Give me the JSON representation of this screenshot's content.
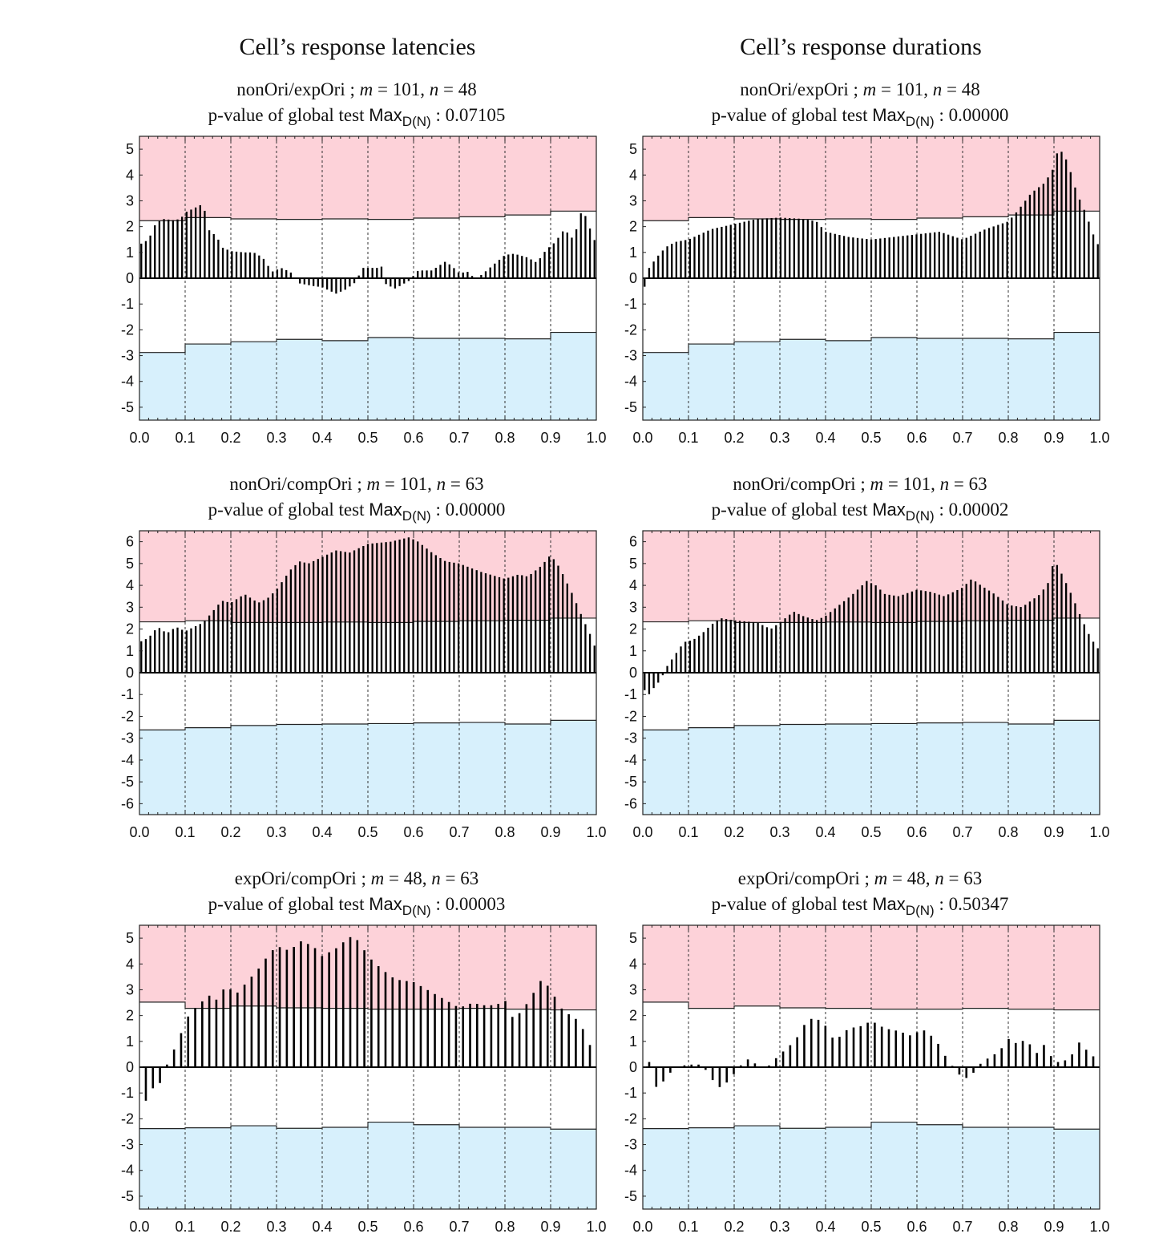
{
  "column_titles": [
    "Cell’s response latencies",
    "Cell’s response durations"
  ],
  "labels": {
    "test_prefix": "p-value of global test",
    "stat_main": "Max",
    "stat_sub": "D(N)",
    "colon": ":"
  },
  "colors": {
    "upper_region": "#fdd2d9",
    "lower_region": "#d7f0fc",
    "bar": "#000000",
    "border": "#222222",
    "grid": "#333333"
  },
  "chart_data": [
    {
      "type": "bar",
      "column": "Cell’s response latencies",
      "title": "nonOri/expOri ; m = 101, n = 48",
      "comparison": "nonOri/expOri",
      "m": "101",
      "n": "48",
      "p_value": "0.07105",
      "xlim": [
        0,
        1
      ],
      "ylim": [
        -5.5,
        5.5
      ],
      "xticks": [
        "0.0",
        "0.1",
        "0.2",
        "0.3",
        "0.4",
        "0.5",
        "0.6",
        "0.7",
        "0.8",
        "0.9",
        "1.0"
      ],
      "yticks": [
        5,
        4,
        3,
        2,
        1,
        0,
        -1,
        -2,
        -3,
        -4,
        -5
      ],
      "bar_count": 101,
      "keypoints": [
        [
          0,
          1.3
        ],
        [
          0.02,
          1.5
        ],
        [
          0.035,
          2.1
        ],
        [
          0.05,
          2.3
        ],
        [
          0.075,
          2.25
        ],
        [
          0.09,
          2.3
        ],
        [
          0.1,
          2.55
        ],
        [
          0.13,
          2.8
        ],
        [
          0.14,
          2.9
        ],
        [
          0.15,
          1.9
        ],
        [
          0.17,
          1.6
        ],
        [
          0.18,
          1.2
        ],
        [
          0.2,
          1.05
        ],
        [
          0.23,
          1.0
        ],
        [
          0.25,
          1.0
        ],
        [
          0.27,
          0.8
        ],
        [
          0.29,
          0.25
        ],
        [
          0.31,
          0.4
        ],
        [
          0.33,
          0.25
        ],
        [
          0.35,
          -0.2
        ],
        [
          0.38,
          -0.3
        ],
        [
          0.4,
          -0.35
        ],
        [
          0.43,
          -0.6
        ],
        [
          0.45,
          -0.45
        ],
        [
          0.47,
          -0.2
        ],
        [
          0.49,
          0.4
        ],
        [
          0.52,
          0.4
        ],
        [
          0.53,
          0.45
        ],
        [
          0.54,
          -0.25
        ],
        [
          0.56,
          -0.4
        ],
        [
          0.59,
          -0.1
        ],
        [
          0.61,
          0.3
        ],
        [
          0.64,
          0.3
        ],
        [
          0.67,
          0.65
        ],
        [
          0.685,
          0.45
        ],
        [
          0.7,
          0.2
        ],
        [
          0.72,
          0.25
        ],
        [
          0.735,
          -0.05
        ],
        [
          0.75,
          0.15
        ],
        [
          0.78,
          0.6
        ],
        [
          0.8,
          0.9
        ],
        [
          0.82,
          0.95
        ],
        [
          0.85,
          0.8
        ],
        [
          0.87,
          0.6
        ],
        [
          0.89,
          1.1
        ],
        [
          0.91,
          1.4
        ],
        [
          0.93,
          1.9
        ],
        [
          0.95,
          1.5
        ],
        [
          0.97,
          2.75
        ],
        [
          0.98,
          2.2
        ],
        [
          1.0,
          1.3
        ]
      ],
      "upper_threshold": [
        2.23,
        2.35,
        2.3,
        2.28,
        2.3,
        2.28,
        2.33,
        2.38,
        2.45,
        2.6
      ],
      "lower_threshold": [
        -2.88,
        -2.55,
        -2.46,
        -2.37,
        -2.42,
        -2.3,
        -2.33,
        -2.33,
        -2.35,
        -2.1
      ]
    },
    {
      "type": "bar",
      "column": "Cell’s response durations",
      "title": "nonOri/expOri ; m = 101, n = 48",
      "comparison": "nonOri/expOri",
      "m": "101",
      "n": "48",
      "p_value": "0.00000",
      "xlim": [
        0,
        1
      ],
      "ylim": [
        -5.5,
        5.5
      ],
      "xticks": [
        "0.0",
        "0.1",
        "0.2",
        "0.3",
        "0.4",
        "0.5",
        "0.6",
        "0.7",
        "0.8",
        "0.9",
        "1.0"
      ],
      "yticks": [
        5,
        4,
        3,
        2,
        1,
        0,
        -1,
        -2,
        -3,
        -4,
        -5
      ],
      "bar_count": 101,
      "keypoints": [
        [
          0,
          -0.75
        ],
        [
          0.01,
          0.3
        ],
        [
          0.03,
          0.8
        ],
        [
          0.05,
          1.2
        ],
        [
          0.07,
          1.4
        ],
        [
          0.1,
          1.5
        ],
        [
          0.15,
          1.9
        ],
        [
          0.2,
          2.1
        ],
        [
          0.25,
          2.3
        ],
        [
          0.3,
          2.35
        ],
        [
          0.35,
          2.3
        ],
        [
          0.38,
          2.2
        ],
        [
          0.4,
          1.8
        ],
        [
          0.45,
          1.6
        ],
        [
          0.5,
          1.5
        ],
        [
          0.55,
          1.6
        ],
        [
          0.6,
          1.7
        ],
        [
          0.65,
          1.8
        ],
        [
          0.7,
          1.5
        ],
        [
          0.75,
          1.9
        ],
        [
          0.8,
          2.2
        ],
        [
          0.82,
          2.6
        ],
        [
          0.85,
          3.3
        ],
        [
          0.88,
          3.7
        ],
        [
          0.9,
          4.3
        ],
        [
          0.91,
          5.1
        ],
        [
          0.93,
          4.5
        ],
        [
          0.95,
          3.3
        ],
        [
          0.97,
          2.5
        ],
        [
          0.99,
          1.5
        ],
        [
          1.0,
          1.2
        ]
      ],
      "upper_threshold": [
        2.23,
        2.35,
        2.3,
        2.28,
        2.3,
        2.28,
        2.33,
        2.38,
        2.45,
        2.6
      ],
      "lower_threshold": [
        -2.88,
        -2.55,
        -2.46,
        -2.37,
        -2.42,
        -2.3,
        -2.33,
        -2.33,
        -2.35,
        -2.1
      ]
    },
    {
      "type": "bar",
      "column": "Cell’s response latencies",
      "title": "nonOri/compOri ; m = 101, n = 63",
      "comparison": "nonOri/compOri",
      "m": "101",
      "n": "63",
      "p_value": "0.00000",
      "xlim": [
        0,
        1
      ],
      "ylim": [
        -6.5,
        6.5
      ],
      "xticks": [
        "0.0",
        "0.1",
        "0.2",
        "0.3",
        "0.4",
        "0.5",
        "0.6",
        "0.7",
        "0.8",
        "0.9",
        "1.0"
      ],
      "yticks": [
        6,
        5,
        4,
        3,
        2,
        1,
        0,
        -1,
        -2,
        -3,
        -4,
        -5,
        -6
      ],
      "bar_count": 101,
      "keypoints": [
        [
          0,
          1.4
        ],
        [
          0.02,
          1.6
        ],
        [
          0.04,
          2.1
        ],
        [
          0.06,
          1.8
        ],
        [
          0.08,
          2.1
        ],
        [
          0.1,
          1.9
        ],
        [
          0.12,
          2.1
        ],
        [
          0.14,
          2.3
        ],
        [
          0.16,
          2.8
        ],
        [
          0.18,
          3.3
        ],
        [
          0.2,
          3.2
        ],
        [
          0.23,
          3.6
        ],
        [
          0.26,
          3.2
        ],
        [
          0.28,
          3.4
        ],
        [
          0.3,
          3.8
        ],
        [
          0.33,
          4.7
        ],
        [
          0.35,
          5.1
        ],
        [
          0.37,
          5.0
        ],
        [
          0.4,
          5.3
        ],
        [
          0.43,
          5.6
        ],
        [
          0.46,
          5.5
        ],
        [
          0.5,
          5.9
        ],
        [
          0.55,
          6.0
        ],
        [
          0.59,
          6.2
        ],
        [
          0.61,
          6.0
        ],
        [
          0.64,
          5.5
        ],
        [
          0.67,
          5.1
        ],
        [
          0.7,
          5.0
        ],
        [
          0.75,
          4.6
        ],
        [
          0.8,
          4.3
        ],
        [
          0.83,
          4.5
        ],
        [
          0.85,
          4.4
        ],
        [
          0.88,
          4.9
        ],
        [
          0.9,
          5.4
        ],
        [
          0.92,
          4.8
        ],
        [
          0.95,
          3.5
        ],
        [
          0.97,
          2.5
        ],
        [
          0.99,
          1.6
        ],
        [
          1.0,
          1.0
        ]
      ],
      "upper_threshold": [
        2.33,
        2.38,
        2.3,
        2.3,
        2.32,
        2.3,
        2.35,
        2.38,
        2.4,
        2.5
      ],
      "lower_threshold": [
        -2.62,
        -2.52,
        -2.42,
        -2.37,
        -2.35,
        -2.33,
        -2.3,
        -2.28,
        -2.35,
        -2.18
      ]
    },
    {
      "type": "bar",
      "column": "Cell’s response durations",
      "title": "nonOri/compOri ; m = 101, n = 63",
      "comparison": "nonOri/compOri",
      "m": "101",
      "n": "63",
      "p_value": "0.00002",
      "xlim": [
        0,
        1
      ],
      "ylim": [
        -6.5,
        6.5
      ],
      "xticks": [
        "0.0",
        "0.1",
        "0.2",
        "0.3",
        "0.4",
        "0.5",
        "0.6",
        "0.7",
        "0.8",
        "0.9",
        "1.0"
      ],
      "yticks": [
        6,
        5,
        4,
        3,
        2,
        1,
        0,
        -1,
        -2,
        -3,
        -4,
        -5,
        -6
      ],
      "bar_count": 101,
      "keypoints": [
        [
          0,
          -0.6
        ],
        [
          0.01,
          -1.1
        ],
        [
          0.02,
          -0.8
        ],
        [
          0.04,
          -0.3
        ],
        [
          0.05,
          0.2
        ],
        [
          0.07,
          0.8
        ],
        [
          0.09,
          1.4
        ],
        [
          0.11,
          1.5
        ],
        [
          0.13,
          1.8
        ],
        [
          0.15,
          2.2
        ],
        [
          0.17,
          2.5
        ],
        [
          0.2,
          2.4
        ],
        [
          0.25,
          2.3
        ],
        [
          0.28,
          2.0
        ],
        [
          0.3,
          2.3
        ],
        [
          0.33,
          2.8
        ],
        [
          0.35,
          2.6
        ],
        [
          0.38,
          2.4
        ],
        [
          0.4,
          2.6
        ],
        [
          0.43,
          3.1
        ],
        [
          0.46,
          3.6
        ],
        [
          0.49,
          4.2
        ],
        [
          0.51,
          4.0
        ],
        [
          0.53,
          3.6
        ],
        [
          0.56,
          3.5
        ],
        [
          0.6,
          3.8
        ],
        [
          0.63,
          3.7
        ],
        [
          0.66,
          3.5
        ],
        [
          0.7,
          3.9
        ],
        [
          0.72,
          4.3
        ],
        [
          0.74,
          4.0
        ],
        [
          0.77,
          3.6
        ],
        [
          0.8,
          3.1
        ],
        [
          0.83,
          3.0
        ],
        [
          0.87,
          3.6
        ],
        [
          0.89,
          4.2
        ],
        [
          0.9,
          5.2
        ],
        [
          0.92,
          4.4
        ],
        [
          0.94,
          3.5
        ],
        [
          0.96,
          2.5
        ],
        [
          0.98,
          1.6
        ],
        [
          1.0,
          1.0
        ]
      ],
      "upper_threshold": [
        2.33,
        2.38,
        2.3,
        2.3,
        2.32,
        2.3,
        2.35,
        2.38,
        2.4,
        2.5
      ],
      "lower_threshold": [
        -2.62,
        -2.52,
        -2.42,
        -2.37,
        -2.35,
        -2.33,
        -2.3,
        -2.28,
        -2.35,
        -2.18
      ]
    },
    {
      "type": "bar",
      "column": "Cell’s response latencies",
      "title": "expOri/compOri ; m = 48, n = 63",
      "comparison": "expOri/compOri",
      "m": "48",
      "n": "63",
      "p_value": "0.00003",
      "xlim": [
        0,
        1
      ],
      "ylim": [
        -5.5,
        5.5
      ],
      "xticks": [
        "0.0",
        "0.1",
        "0.2",
        "0.3",
        "0.4",
        "0.5",
        "0.6",
        "0.7",
        "0.8",
        "0.9",
        "1.0"
      ],
      "yticks": [
        5,
        4,
        3,
        2,
        1,
        0,
        -1,
        -2,
        -3,
        -4,
        -5
      ],
      "bar_count": 64,
      "keypoints": [
        [
          0.015,
          -1.3
        ],
        [
          0.03,
          -0.8
        ],
        [
          0.05,
          -0.55
        ],
        [
          0.065,
          0.4
        ],
        [
          0.08,
          0.8
        ],
        [
          0.095,
          1.5
        ],
        [
          0.11,
          2.1
        ],
        [
          0.13,
          2.4
        ],
        [
          0.15,
          2.8
        ],
        [
          0.17,
          2.6
        ],
        [
          0.19,
          3.2
        ],
        [
          0.21,
          2.8
        ],
        [
          0.23,
          3.2
        ],
        [
          0.26,
          3.8
        ],
        [
          0.28,
          4.3
        ],
        [
          0.3,
          4.7
        ],
        [
          0.33,
          4.5
        ],
        [
          0.35,
          4.9
        ],
        [
          0.38,
          4.7
        ],
        [
          0.4,
          4.3
        ],
        [
          0.43,
          4.6
        ],
        [
          0.46,
          5.05
        ],
        [
          0.48,
          4.9
        ],
        [
          0.5,
          4.3
        ],
        [
          0.53,
          3.8
        ],
        [
          0.56,
          3.4
        ],
        [
          0.6,
          3.3
        ],
        [
          0.63,
          3.0
        ],
        [
          0.65,
          2.8
        ],
        [
          0.68,
          2.5
        ],
        [
          0.7,
          2.3
        ],
        [
          0.73,
          2.5
        ],
        [
          0.75,
          2.4
        ],
        [
          0.78,
          2.4
        ],
        [
          0.8,
          2.6
        ],
        [
          0.82,
          1.8
        ],
        [
          0.84,
          2.3
        ],
        [
          0.86,
          2.7
        ],
        [
          0.87,
          3.4
        ],
        [
          0.89,
          3.25
        ],
        [
          0.91,
          2.7
        ],
        [
          0.93,
          2.1
        ],
        [
          0.95,
          2.0
        ],
        [
          0.97,
          1.5
        ],
        [
          0.99,
          0.7
        ]
      ],
      "upper_threshold": [
        2.52,
        2.28,
        2.37,
        2.3,
        2.28,
        2.25,
        2.25,
        2.28,
        2.25,
        2.22
      ],
      "lower_threshold": [
        -2.38,
        -2.35,
        -2.27,
        -2.37,
        -2.33,
        -2.13,
        -2.23,
        -2.33,
        -2.33,
        -2.4
      ]
    },
    {
      "type": "bar",
      "column": "Cell’s response durations",
      "title": "expOri/compOri ; m = 48, n = 63",
      "comparison": "expOri/compOri",
      "m": "48",
      "n": "63",
      "p_value": "0.50347",
      "xlim": [
        0,
        1
      ],
      "ylim": [
        -5.5,
        5.5
      ],
      "xticks": [
        "0.0",
        "0.1",
        "0.2",
        "0.3",
        "0.4",
        "0.5",
        "0.6",
        "0.7",
        "0.8",
        "0.9",
        "1.0"
      ],
      "yticks": [
        5,
        4,
        3,
        2,
        1,
        0,
        -1,
        -2,
        -3,
        -4,
        -5
      ],
      "bar_count": 64,
      "keypoints": [
        [
          0.015,
          0.2
        ],
        [
          0.03,
          -0.8
        ],
        [
          0.045,
          -0.55
        ],
        [
          0.07,
          0.0
        ],
        [
          0.1,
          0.1
        ],
        [
          0.13,
          0.1
        ],
        [
          0.15,
          -0.45
        ],
        [
          0.17,
          -0.8
        ],
        [
          0.19,
          -0.5
        ],
        [
          0.21,
          0.0
        ],
        [
          0.23,
          0.3
        ],
        [
          0.25,
          0.1
        ],
        [
          0.27,
          -0.05
        ],
        [
          0.3,
          0.5
        ],
        [
          0.32,
          0.8
        ],
        [
          0.34,
          1.2
        ],
        [
          0.36,
          1.85
        ],
        [
          0.38,
          1.9
        ],
        [
          0.4,
          1.6
        ],
        [
          0.42,
          1.0
        ],
        [
          0.45,
          1.5
        ],
        [
          0.48,
          1.6
        ],
        [
          0.5,
          1.8
        ],
        [
          0.53,
          1.5
        ],
        [
          0.56,
          1.4
        ],
        [
          0.59,
          1.2
        ],
        [
          0.61,
          1.5
        ],
        [
          0.64,
          1.1
        ],
        [
          0.67,
          0.2
        ],
        [
          0.69,
          -0.2
        ],
        [
          0.7,
          -0.5
        ],
        [
          0.72,
          -0.3
        ],
        [
          0.74,
          0.15
        ],
        [
          0.76,
          0.4
        ],
        [
          0.78,
          0.6
        ],
        [
          0.8,
          1.1
        ],
        [
          0.82,
          0.9
        ],
        [
          0.84,
          1.1
        ],
        [
          0.86,
          0.5
        ],
        [
          0.88,
          0.9
        ],
        [
          0.9,
          0.2
        ],
        [
          0.92,
          0.2
        ],
        [
          0.94,
          0.5
        ],
        [
          0.96,
          1.1
        ],
        [
          0.98,
          0.3
        ],
        [
          1.0,
          0.7
        ]
      ],
      "upper_threshold": [
        2.52,
        2.28,
        2.37,
        2.3,
        2.28,
        2.25,
        2.25,
        2.28,
        2.25,
        2.22
      ],
      "lower_threshold": [
        -2.38,
        -2.35,
        -2.27,
        -2.37,
        -2.33,
        -2.13,
        -2.23,
        -2.33,
        -2.33,
        -2.4
      ]
    }
  ]
}
